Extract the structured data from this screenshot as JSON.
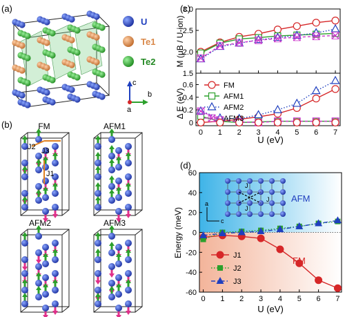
{
  "panels": {
    "a": {
      "label": "(a)",
      "legend": [
        {
          "name": "U",
          "color": "#1f3fbf"
        },
        {
          "name": "Te1",
          "color": "#d9884a"
        },
        {
          "name": "Te2",
          "color": "#33aa33"
        }
      ],
      "axes": {
        "c": "c",
        "b": "b",
        "a": "a"
      }
    },
    "b": {
      "label": "(b)",
      "configs": [
        "FM",
        "AFM1",
        "AFM2",
        "AFM3"
      ],
      "exchange_labels": [
        "J1",
        "J2",
        "J3"
      ]
    },
    "c": {
      "label": "(c)"
    },
    "d": {
      "label": "(d)",
      "region_afm": "AFM",
      "region_fm": "FM",
      "inset_axes": {
        "a": "a",
        "c": "c"
      }
    }
  },
  "chart_data": [
    {
      "type": "line",
      "ylabel": "M (μB / U-ion)",
      "ylim": [
        1.5,
        3.0
      ],
      "yticks": [
        "1.5",
        "2.0",
        "2.5",
        "3.0"
      ],
      "x": [
        0,
        1,
        2,
        3,
        4,
        5,
        6,
        7
      ],
      "series": [
        {
          "name": "FM",
          "color": "#d62728",
          "marker": "circle",
          "values": [
            2.0,
            2.22,
            2.35,
            2.42,
            2.52,
            2.6,
            2.68,
            2.73
          ]
        },
        {
          "name": "AFM1",
          "color": "#2ca02c",
          "marker": "square",
          "values": [
            1.97,
            2.2,
            2.3,
            2.33,
            2.37,
            2.39,
            2.41,
            2.43
          ]
        },
        {
          "name": "AFM2",
          "color": "#1f3fbf",
          "marker": "triangle",
          "values": [
            1.83,
            2.12,
            2.2,
            2.28,
            2.33,
            2.38,
            2.44,
            2.53
          ]
        },
        {
          "name": "AFM3",
          "color": "#cc33cc",
          "marker": "x",
          "values": [
            1.85,
            2.14,
            2.21,
            2.27,
            2.31,
            2.34,
            2.36,
            2.38
          ]
        }
      ]
    },
    {
      "type": "line",
      "ylabel": "Δ E (eV)",
      "xlabel": "U (eV)",
      "ylim": [
        -0.05,
        0.78
      ],
      "yticks": [
        "0",
        "0.2",
        "0.4",
        "0.6"
      ],
      "xticks": [
        "0",
        "1",
        "2",
        "3",
        "4",
        "5",
        "6",
        "7"
      ],
      "x": [
        0,
        1,
        2,
        3,
        4,
        5,
        6,
        7
      ],
      "series": [
        {
          "name": "FM",
          "color": "#d62728",
          "marker": "circle",
          "values": [
            0.0,
            0.0,
            0.0,
            0.0,
            0.0,
            0.0,
            0.0,
            0.0
          ]
        },
        {
          "name": "AFM1",
          "color": "#2ca02c",
          "marker": "square",
          "values": [
            0.1,
            0.02,
            0.0,
            0.01,
            0.02,
            0.02,
            0.02,
            0.02
          ]
        },
        {
          "name": "AFM2",
          "color": "#1f3fbf",
          "marker": "triangle",
          "values": [
            0.18,
            0.07,
            0.06,
            0.12,
            0.2,
            0.3,
            0.5,
            0.66
          ]
        },
        {
          "name": "AFM3",
          "color": "#cc33cc",
          "marker": "x",
          "values": [
            0.18,
            0.04,
            0.01,
            0.0,
            0.02,
            0.02,
            0.02,
            0.02
          ]
        }
      ],
      "extra_series": [
        {
          "name": "FM-line",
          "color": "#d62728",
          "values": [
            0.0,
            0.02,
            0.05,
            0.09,
            0.14,
            0.23,
            0.38,
            0.53
          ]
        }
      ]
    },
    {
      "type": "line",
      "ylabel": "Energy (meV)",
      "xlabel": "U (eV)",
      "ylim": [
        -60,
        60
      ],
      "yticks": [
        "-60",
        "-40",
        "-20",
        "0",
        "20",
        "40",
        "60"
      ],
      "xticks": [
        "0",
        "1",
        "2",
        "3",
        "4",
        "5",
        "6",
        "7"
      ],
      "x": [
        0,
        1,
        2,
        3,
        4,
        5,
        6,
        7
      ],
      "series": [
        {
          "name": "J1",
          "color": "#d62728",
          "marker": "circle",
          "values": [
            -5,
            -3,
            -4,
            -6,
            -17,
            -31,
            -48,
            -56
          ]
        },
        {
          "name": "J2",
          "color": "#2ca02c",
          "marker": "square",
          "values": [
            -7,
            0,
            1,
            2,
            4,
            6,
            9,
            11
          ]
        },
        {
          "name": "J3",
          "color": "#1f3fbf",
          "marker": "triangle",
          "values": [
            -3,
            -1,
            0,
            1,
            3,
            6,
            9,
            12
          ]
        }
      ]
    }
  ]
}
